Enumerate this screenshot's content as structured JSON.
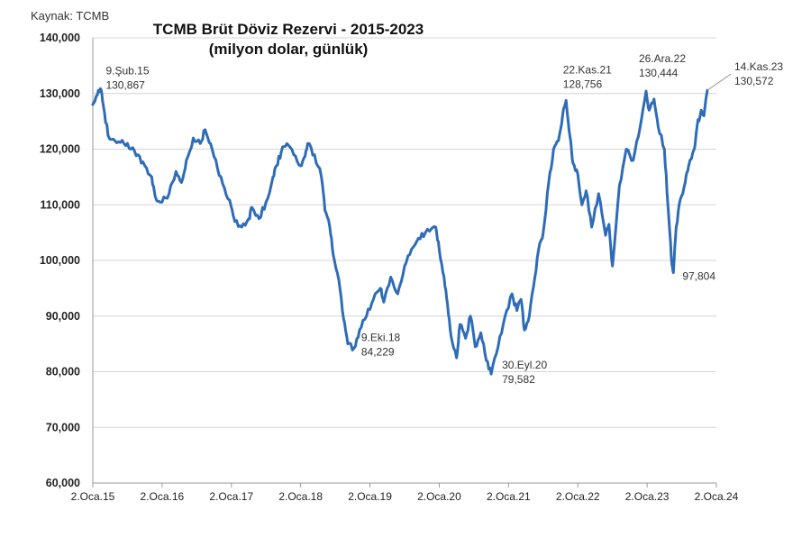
{
  "source": "Kaynak: TCMB",
  "chart_data": {
    "type": "line",
    "title": "TCMB Brüt Döviz Rezervi - 2015-2023",
    "subtitle": "(milyon dolar, günlük)",
    "xlabel": "",
    "ylabel": "",
    "ylim": [
      60000,
      140000
    ],
    "xlim": [
      2015.0,
      2024.0
    ],
    "grid": true,
    "y_ticks": [
      60000,
      70000,
      80000,
      90000,
      100000,
      110000,
      120000,
      130000,
      140000
    ],
    "y_tick_labels": [
      "60,000",
      "70,000",
      "80,000",
      "90,000",
      "100,000",
      "110,000",
      "120,000",
      "130,000",
      "140,000"
    ],
    "x_ticks": [
      2015,
      2016,
      2017,
      2018,
      2019,
      2020,
      2021,
      2022,
      2023,
      2024
    ],
    "x_tick_labels": [
      "2.Oca.15",
      "2.Oca.16",
      "2.Oca.17",
      "2.Oca.18",
      "2.Oca.19",
      "2.Oca.20",
      "2.Oca.21",
      "2.Oca.22",
      "2.Oca.23",
      "2.Oca.24"
    ],
    "series": [
      {
        "name": "Brüt Döviz Rezervi",
        "color": "#2e6cb8",
        "x": [
          2015.0,
          2015.05,
          2015.11,
          2015.15,
          2015.22,
          2015.32,
          2015.45,
          2015.55,
          2015.65,
          2015.75,
          2015.85,
          2015.9,
          2016.0,
          2016.1,
          2016.2,
          2016.28,
          2016.35,
          2016.45,
          2016.55,
          2016.62,
          2016.7,
          2016.8,
          2016.9,
          2017.0,
          2017.05,
          2017.15,
          2017.25,
          2017.3,
          2017.4,
          2017.5,
          2017.6,
          2017.65,
          2017.72,
          2017.8,
          2017.9,
          2018.0,
          2018.05,
          2018.1,
          2018.2,
          2018.3,
          2018.35,
          2018.42,
          2018.47,
          2018.55,
          2018.62,
          2018.68,
          2018.77,
          2018.85,
          2018.95,
          2019.05,
          2019.15,
          2019.2,
          2019.3,
          2019.4,
          2019.5,
          2019.6,
          2019.7,
          2019.8,
          2019.95,
          2020.0,
          2020.07,
          2020.12,
          2020.17,
          2020.25,
          2020.3,
          2020.38,
          2020.45,
          2020.52,
          2020.6,
          2020.68,
          2020.75,
          2020.85,
          2020.95,
          2021.05,
          2021.12,
          2021.18,
          2021.23,
          2021.3,
          2021.38,
          2021.45,
          2021.5,
          2021.58,
          2021.65,
          2021.72,
          2021.78,
          2021.83,
          2021.89,
          2021.93,
          2022.0,
          2022.06,
          2022.12,
          2022.2,
          2022.3,
          2022.4,
          2022.45,
          2022.5,
          2022.6,
          2022.7,
          2022.8,
          2022.9,
          2022.985,
          2023.03,
          2023.1,
          2023.16,
          2023.25,
          2023.3,
          2023.35,
          2023.38,
          2023.42,
          2023.48,
          2023.55,
          2023.6,
          2023.68,
          2023.72,
          2023.78,
          2023.82,
          2023.87
        ],
        "values": [
          128000,
          129500,
          130867,
          128000,
          122500,
          121500,
          121000,
          120000,
          119000,
          117000,
          115000,
          111500,
          110500,
          112000,
          116000,
          114000,
          118000,
          122000,
          121000,
          123500,
          121000,
          116500,
          113000,
          109500,
          107000,
          106000,
          107500,
          109500,
          107500,
          110500,
          115000,
          117000,
          119500,
          121000,
          119000,
          117000,
          118500,
          121000,
          119000,
          115000,
          109000,
          106000,
          101000,
          96500,
          89500,
          85000,
          84229,
          87500,
          90000,
          93000,
          95000,
          92500,
          97000,
          94000,
          99000,
          102000,
          104000,
          105000,
          106000,
          102000,
          97000,
          92000,
          86500,
          82500,
          88500,
          86000,
          90000,
          84500,
          87000,
          82000,
          79582,
          84500,
          90000,
          94000,
          91000,
          93000,
          87500,
          90000,
          97000,
          103000,
          105000,
          114000,
          120000,
          121500,
          126000,
          128756,
          122000,
          117500,
          115500,
          110000,
          112500,
          106000,
          112000,
          104500,
          106500,
          99000,
          113500,
          120000,
          118000,
          124000,
          130444,
          127000,
          129000,
          124000,
          120000,
          110000,
          100500,
          97804,
          106000,
          111000,
          114000,
          117000,
          120000,
          124000,
          127000,
          126000,
          130572
        ]
      }
    ],
    "annotations": [
      {
        "label": "9.Şub.15",
        "value": "130,867",
        "x": 2015.11,
        "y": 130867
      },
      {
        "label": "9.Eki.18",
        "value": "84,229",
        "x": 2018.77,
        "y": 84229
      },
      {
        "label": "30.Eyl.20",
        "value": "79,582",
        "x": 2020.75,
        "y": 79582
      },
      {
        "label": "22.Kas.21",
        "value": "128,756",
        "x": 2021.89,
        "y": 128756
      },
      {
        "label": "26.Ara.22",
        "value": "130,444",
        "x": 2022.985,
        "y": 130444
      },
      {
        "label": "",
        "value": "97,804",
        "x": 2023.38,
        "y": 97804
      },
      {
        "label": "14.Kas.23",
        "value": "130,572",
        "x": 2023.87,
        "y": 130572
      }
    ]
  }
}
